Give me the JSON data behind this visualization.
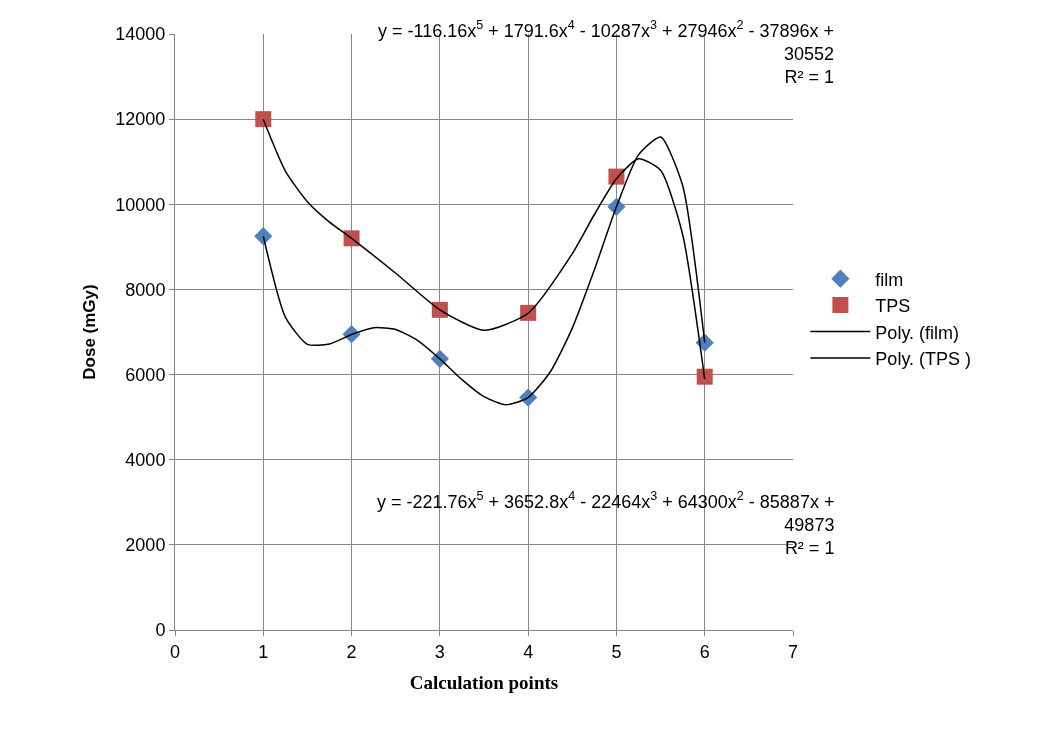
{
  "chart_data": {
    "type": "scatter",
    "xlabel": "Calculation points",
    "ylabel": "Dose (mGy)",
    "xlim": [
      0,
      7
    ],
    "xticks": [
      0,
      1,
      2,
      3,
      4,
      5,
      6,
      7
    ],
    "ylim": [
      0,
      14000
    ],
    "yticks": [
      0,
      2000,
      4000,
      6000,
      8000,
      10000,
      12000,
      14000
    ],
    "grid": true,
    "legend": "right",
    "x": [
      1,
      2,
      3,
      4,
      5,
      6
    ],
    "series": [
      {
        "name": "film",
        "marker": "diamond",
        "color": "#4f81bd",
        "values": [
          9250,
          6950,
          6370,
          5460,
          9940,
          6750
        ]
      },
      {
        "name": "TPS",
        "marker": "square",
        "color": "#c0504d",
        "values": [
          12000,
          9200,
          7520,
          7450,
          10650,
          5950
        ]
      },
      {
        "name": "Poly. (film)",
        "type": "line",
        "marker": "none",
        "line_style": "solid",
        "color": "#000000",
        "x": [
          1,
          1.25,
          1.5,
          1.75,
          2,
          2.25,
          2.5,
          2.75,
          3,
          3.25,
          3.5,
          3.75,
          4,
          4.25,
          4.5,
          4.75,
          5,
          5.25,
          5.5,
          5.75,
          6
        ],
        "values": [
          9250,
          7350,
          6710,
          6720,
          6940,
          7100,
          7060,
          6800,
          6370,
          5880,
          5480,
          5290,
          5460,
          6060,
          7090,
          8460,
          9940,
          11160,
          11580,
          10440,
          6750
        ]
      },
      {
        "name": "Poly. (TPS )",
        "type": "line",
        "marker": "none",
        "line_style": "solid",
        "color": "#000000",
        "x": [
          1,
          1.25,
          1.5,
          1.75,
          2,
          2.5,
          3,
          3.5,
          4,
          4.5,
          4.75,
          5,
          5.25,
          5.5,
          5.75,
          6
        ],
        "values": [
          11990,
          10780,
          10060,
          9580,
          9200,
          8380,
          7520,
          7040,
          7440,
          8840,
          9760,
          10600,
          11070,
          10800,
          9290,
          5890
        ]
      }
    ],
    "annotations": [
      "y = -116.16x$^{5}$ + 1791.6x$^{4}$ - 10287x$^{3}$ + 27946x$^{2}$ - 37896x +\n30552\nR² = 1",
      "y = -221.76x$^{5}$ + 3652.8x$^{4}$ - 22464x$^{3}$ + 64300x$^{2}$ - 85887x +\n49873\nR² = 1"
    ]
  }
}
